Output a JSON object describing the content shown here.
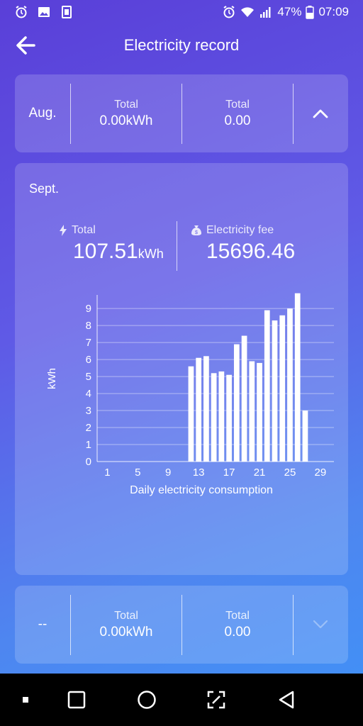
{
  "status_bar": {
    "battery": "47%",
    "time": "07:09",
    "left_icons": [
      "alarm-icon",
      "image-icon",
      "clipboard-icon"
    ],
    "right_icons": [
      "alarm-icon",
      "wifi-icon",
      "signal-icon",
      "battery-icon"
    ]
  },
  "header": {
    "title": "Electricity record",
    "back_icon": "arrow-left-icon"
  },
  "prev_month": {
    "month": "Aug.",
    "total_label": "Total",
    "total_value": "0.00kWh",
    "fee_label": "Total",
    "fee_value": "0.00",
    "toggle_icon": "chevron-up-icon"
  },
  "current_month": {
    "month": "Sept.",
    "total_label": "Total",
    "total_value": "107.51",
    "total_unit": "kWh",
    "fee_label": "Electricity fee",
    "fee_value": "15696.46"
  },
  "next_month": {
    "month": "--",
    "total_label": "Total",
    "total_value": "0.00kWh",
    "fee_label": "Total",
    "fee_value": "0.00",
    "toggle_icon": "chevron-down-icon"
  },
  "chart_data": {
    "type": "bar",
    "xlabel": "Daily electricity consumption",
    "ylabel": "kWh",
    "ylim": [
      0,
      9.8
    ],
    "y_ticks": [
      0,
      1,
      2,
      3,
      4,
      5,
      6,
      7,
      8,
      9
    ],
    "x_ticks": [
      1,
      5,
      9,
      13,
      17,
      21,
      25,
      29
    ],
    "categories": [
      1,
      2,
      3,
      4,
      5,
      6,
      7,
      8,
      9,
      10,
      11,
      12,
      13,
      14,
      15,
      16,
      17,
      18,
      19,
      20,
      21,
      22,
      23,
      24,
      25,
      26,
      27,
      28,
      29,
      30
    ],
    "values": [
      0,
      0,
      0,
      0,
      0,
      0,
      0,
      0,
      0,
      0,
      0,
      5.6,
      6.1,
      6.2,
      5.2,
      5.3,
      5.1,
      6.9,
      7.4,
      5.9,
      5.8,
      8.9,
      8.3,
      8.6,
      9.0,
      9.9,
      3.0,
      0,
      0,
      0
    ],
    "grid": true,
    "color": "#ffffff"
  },
  "nav": {
    "buttons": [
      "recent-dot-icon",
      "square-icon",
      "circle-home-icon",
      "screenshot-icon",
      "triangle-back-icon"
    ]
  }
}
